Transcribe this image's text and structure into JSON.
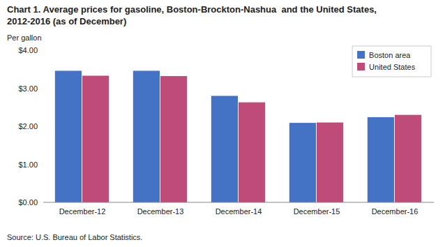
{
  "chart_data": {
    "type": "bar",
    "title": "Chart 1. Average prices for gasoline, Boston-Brockton-Nashua  and the United States,",
    "subtitle": "2012-2016 (as of December)",
    "y_label": "Per gallon",
    "source": "Source: U.S. Bureau of Labor Statistics.",
    "categories": [
      "December-12",
      "December-13",
      "December-14",
      "December-15",
      "December-16"
    ],
    "series": [
      {
        "name": "Boston area",
        "color": "#4472C4",
        "values": [
          3.46,
          3.46,
          2.8,
          2.09,
          2.24
        ]
      },
      {
        "name": "United States",
        "color": "#BE4B78",
        "values": [
          3.33,
          3.32,
          2.63,
          2.1,
          2.3
        ]
      }
    ],
    "ylim": [
      0,
      4.0
    ],
    "yticks": [
      {
        "value": 0.0,
        "label": "$0.00"
      },
      {
        "value": 1.0,
        "label": "$1.00"
      },
      {
        "value": 2.0,
        "label": "$2.00"
      },
      {
        "value": 3.0,
        "label": "$3.00"
      },
      {
        "value": 4.0,
        "label": "$4.00"
      }
    ],
    "grid": false,
    "legend": "upper right"
  }
}
